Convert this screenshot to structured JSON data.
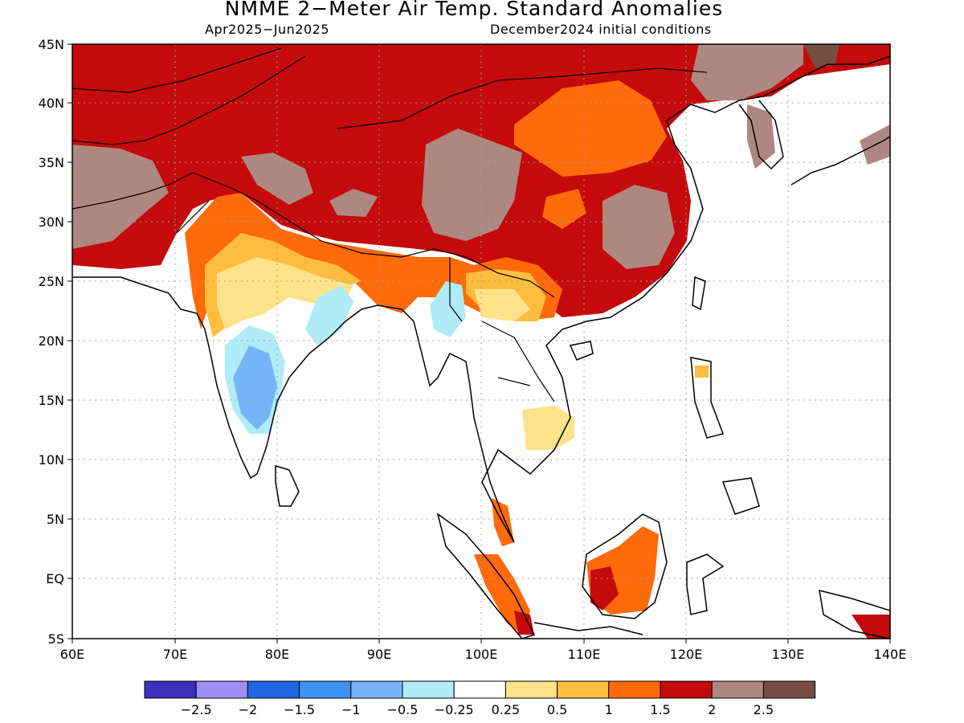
{
  "title": "NMME 2−Meter Air Temp. Standard Anomalies",
  "subtitle_left": "Apr2025−Jun2025",
  "subtitle_right": "December2024 initial conditions",
  "axes": {
    "lat_labels": [
      "45N",
      "40N",
      "35N",
      "30N",
      "25N",
      "20N",
      "15N",
      "10N",
      "5N",
      "EQ",
      "5S"
    ],
    "lon_labels": [
      "60E",
      "70E",
      "80E",
      "90E",
      "100E",
      "110E",
      "120E",
      "130E",
      "140E"
    ]
  },
  "colorbar": {
    "colors": [
      "#3f2fbf",
      "#9f8ff5",
      "#1f66e6",
      "#3f93f5",
      "#75b5f7",
      "#b0ecf7",
      "#ffffff",
      "#ffe28a",
      "#ffbd3f",
      "#ff6a0a",
      "#c40a0a",
      "#ae8880",
      "#774e42"
    ],
    "tick_labels": [
      "−2.5",
      "−2",
      "−1.5",
      "−1",
      "−0.5",
      "−0.25",
      "0.25",
      "0.5",
      "1",
      "1.5",
      "2",
      "2.5"
    ]
  },
  "legend_colors": {
    "light_blue": "#b0ecf7",
    "blue": "#75b5f7",
    "light_yellow": "#ffe28a",
    "yellow": "#ffbd3f",
    "orange": "#ff6a0a",
    "red": "#c40a0a",
    "brown": "#ae8880",
    "dark_brown": "#774e42"
  }
}
